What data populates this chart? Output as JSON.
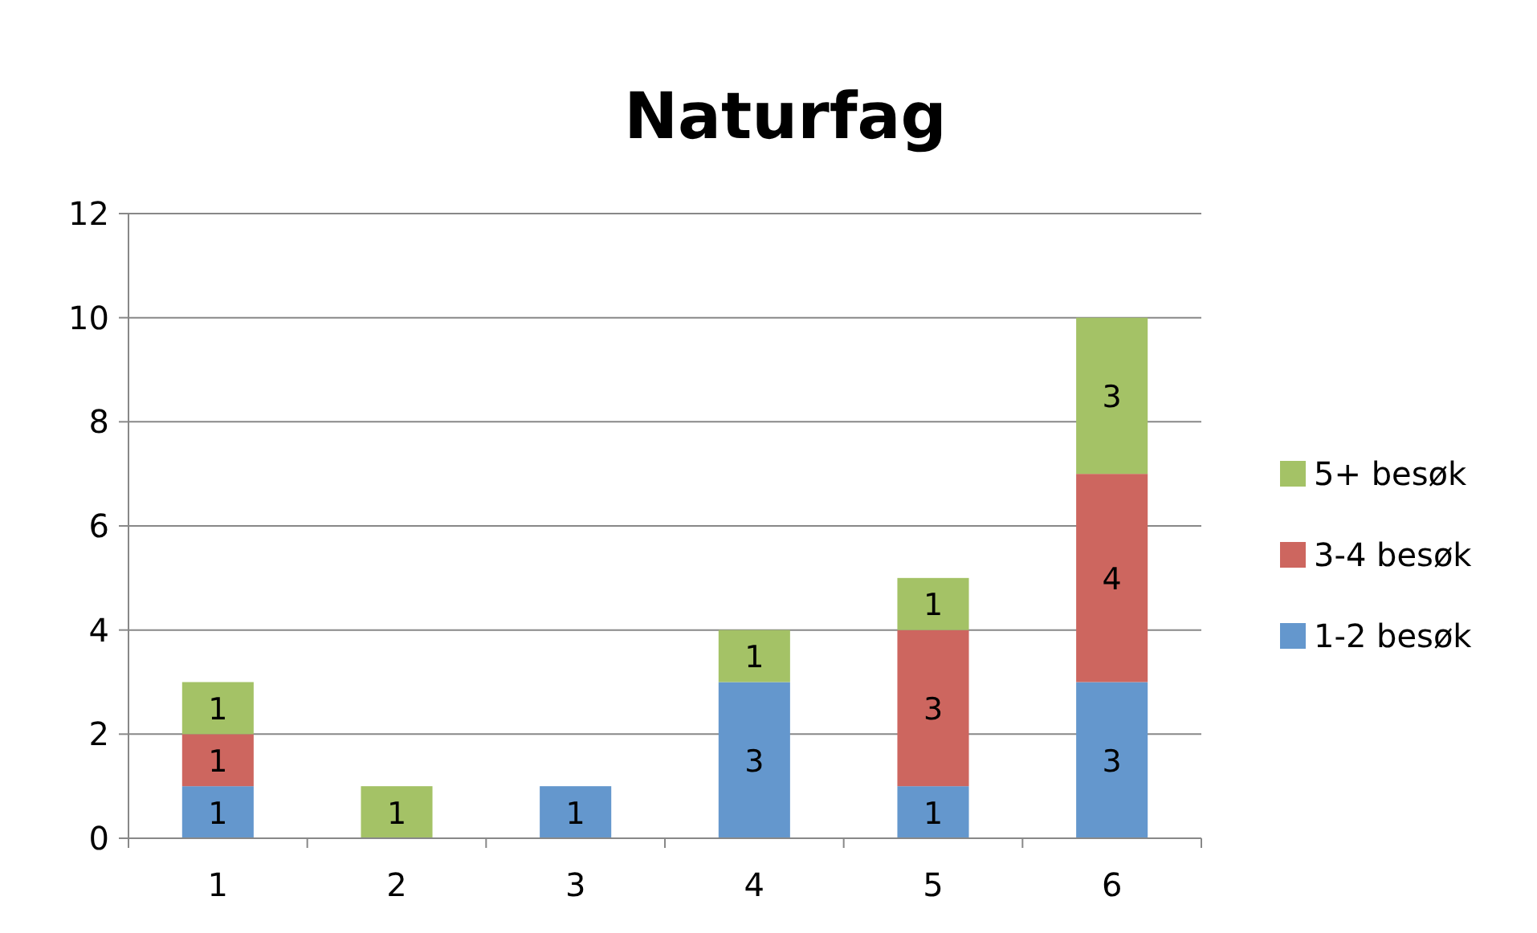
{
  "chart_data": {
    "type": "bar",
    "title": "Naturfag",
    "categories": [
      "1",
      "2",
      "3",
      "4",
      "5",
      "6"
    ],
    "stacked": true,
    "series": [
      {
        "name": "1-2 besøk",
        "color": "#6497cd",
        "values": [
          1,
          null,
          1,
          3,
          1,
          3
        ]
      },
      {
        "name": "3-4 besøk",
        "color": "#cd665f",
        "values": [
          1,
          null,
          null,
          null,
          3,
          4
        ]
      },
      {
        "name": "5+ besøk",
        "color": "#a4c266",
        "values": [
          1,
          1,
          null,
          1,
          1,
          3
        ]
      }
    ],
    "ylim": [
      0,
      12
    ],
    "yticks": [
      0,
      2,
      4,
      6,
      8,
      10,
      12
    ],
    "grid": "y",
    "legend": "right",
    "data_labels": true
  }
}
